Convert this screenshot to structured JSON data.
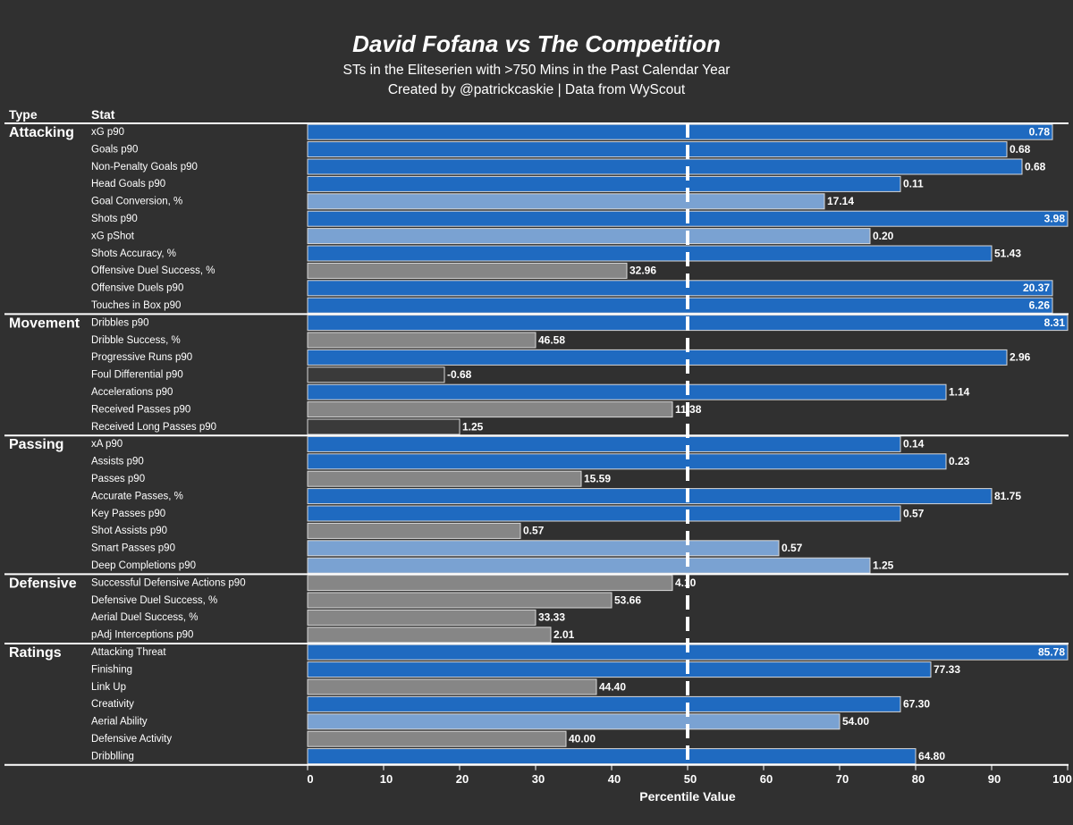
{
  "header": {
    "title": "David Fofana vs The Competition",
    "subtitle": "STs in the Eliteserien with >750 Mins in the Past Calendar Year",
    "credit": "Created by @patrickcaskie | Data from WyScout"
  },
  "columns": {
    "type": "Type",
    "stat": "Stat"
  },
  "colors": {
    "background": "#303030",
    "above_average": "#1f6ac0",
    "average": "#7aa2d2",
    "below_average": "#868686",
    "low": "#3a3a3a",
    "reference_line": "#ffffff"
  },
  "chart_data": {
    "type": "bar",
    "orientation": "horizontal",
    "xlabel": "Percentile Value",
    "xlim": [
      0,
      100
    ],
    "xticks": [
      0,
      10,
      20,
      30,
      40,
      50,
      60,
      70,
      80,
      90,
      100
    ],
    "reference_line": {
      "x": 50,
      "style": "dashed"
    },
    "grid": false,
    "groups": [
      {
        "name": "Attacking",
        "stats": [
          {
            "label": "xG p90",
            "percentile": 98,
            "value": "0.78",
            "color_class": "above_average"
          },
          {
            "label": "Goals p90",
            "percentile": 92,
            "value": "0.68",
            "color_class": "above_average"
          },
          {
            "label": "Non-Penalty Goals p90",
            "percentile": 94,
            "value": "0.68",
            "color_class": "above_average"
          },
          {
            "label": "Head Goals p90",
            "percentile": 78,
            "value": "0.11",
            "color_class": "above_average"
          },
          {
            "label": "Goal Conversion, %",
            "percentile": 68,
            "value": "17.14",
            "color_class": "average"
          },
          {
            "label": "Shots p90",
            "percentile": 100,
            "value": "3.98",
            "color_class": "above_average"
          },
          {
            "label": "xG pShot",
            "percentile": 74,
            "value": "0.20",
            "color_class": "average"
          },
          {
            "label": "Shots Accuracy, %",
            "percentile": 90,
            "value": "51.43",
            "color_class": "above_average"
          },
          {
            "label": "Offensive Duel Success, %",
            "percentile": 42,
            "value": "32.96",
            "color_class": "below_average"
          },
          {
            "label": "Offensive Duels p90",
            "percentile": 98,
            "value": "20.37",
            "color_class": "above_average"
          },
          {
            "label": "Touches in Box p90",
            "percentile": 98,
            "value": "6.26",
            "color_class": "above_average"
          }
        ]
      },
      {
        "name": "Movement",
        "stats": [
          {
            "label": "Dribbles p90",
            "percentile": 100,
            "value": "8.31",
            "color_class": "above_average"
          },
          {
            "label": "Dribble Success, %",
            "percentile": 30,
            "value": "46.58",
            "color_class": "below_average"
          },
          {
            "label": "Progressive Runs p90",
            "percentile": 92,
            "value": "2.96",
            "color_class": "above_average"
          },
          {
            "label": "Foul Differential p90",
            "percentile": 18,
            "value": "-0.68",
            "color_class": "low"
          },
          {
            "label": "Accelerations p90",
            "percentile": 84,
            "value": "1.14",
            "color_class": "above_average"
          },
          {
            "label": "Received Passes p90",
            "percentile": 48,
            "value": "11.38",
            "color_class": "below_average"
          },
          {
            "label": "Received Long Passes p90",
            "percentile": 20,
            "value": "1.25",
            "color_class": "low"
          }
        ]
      },
      {
        "name": "Passing",
        "stats": [
          {
            "label": "xA p90",
            "percentile": 78,
            "value": "0.14",
            "color_class": "above_average"
          },
          {
            "label": "Assists p90",
            "percentile": 84,
            "value": "0.23",
            "color_class": "above_average"
          },
          {
            "label": "Passes p90",
            "percentile": 36,
            "value": "15.59",
            "color_class": "below_average"
          },
          {
            "label": "Accurate Passes, %",
            "percentile": 90,
            "value": "81.75",
            "color_class": "above_average"
          },
          {
            "label": "Key Passes p90",
            "percentile": 78,
            "value": "0.57",
            "color_class": "above_average"
          },
          {
            "label": "Shot Assists p90",
            "percentile": 28,
            "value": "0.57",
            "color_class": "below_average"
          },
          {
            "label": "Smart Passes p90",
            "percentile": 62,
            "value": "0.57",
            "color_class": "average"
          },
          {
            "label": "Deep Completions p90",
            "percentile": 74,
            "value": "1.25",
            "color_class": "average"
          }
        ]
      },
      {
        "name": "Defensive",
        "stats": [
          {
            "label": "Successful Defensive Actions p90",
            "percentile": 48,
            "value": "4.10",
            "color_class": "below_average"
          },
          {
            "label": "Defensive Duel Success, %",
            "percentile": 40,
            "value": "53.66",
            "color_class": "below_average"
          },
          {
            "label": "Aerial Duel Success, %",
            "percentile": 30,
            "value": "33.33",
            "color_class": "below_average"
          },
          {
            "label": "pAdj Interceptions p90",
            "percentile": 32,
            "value": "2.01",
            "color_class": "below_average"
          }
        ]
      },
      {
        "name": "Ratings",
        "stats": [
          {
            "label": "Attacking Threat",
            "percentile": 100,
            "value": "85.78",
            "color_class": "above_average"
          },
          {
            "label": "Finishing",
            "percentile": 82,
            "value": "77.33",
            "color_class": "above_average"
          },
          {
            "label": "Link Up",
            "percentile": 38,
            "value": "44.40",
            "color_class": "below_average"
          },
          {
            "label": "Creativity",
            "percentile": 78,
            "value": "67.30",
            "color_class": "above_average"
          },
          {
            "label": "Aerial Ability",
            "percentile": 70,
            "value": "54.00",
            "color_class": "average"
          },
          {
            "label": "Defensive Activity",
            "percentile": 34,
            "value": "40.00",
            "color_class": "below_average"
          },
          {
            "label": "Dribblling",
            "percentile": 80,
            "value": "64.80",
            "color_class": "above_average"
          }
        ]
      }
    ]
  }
}
